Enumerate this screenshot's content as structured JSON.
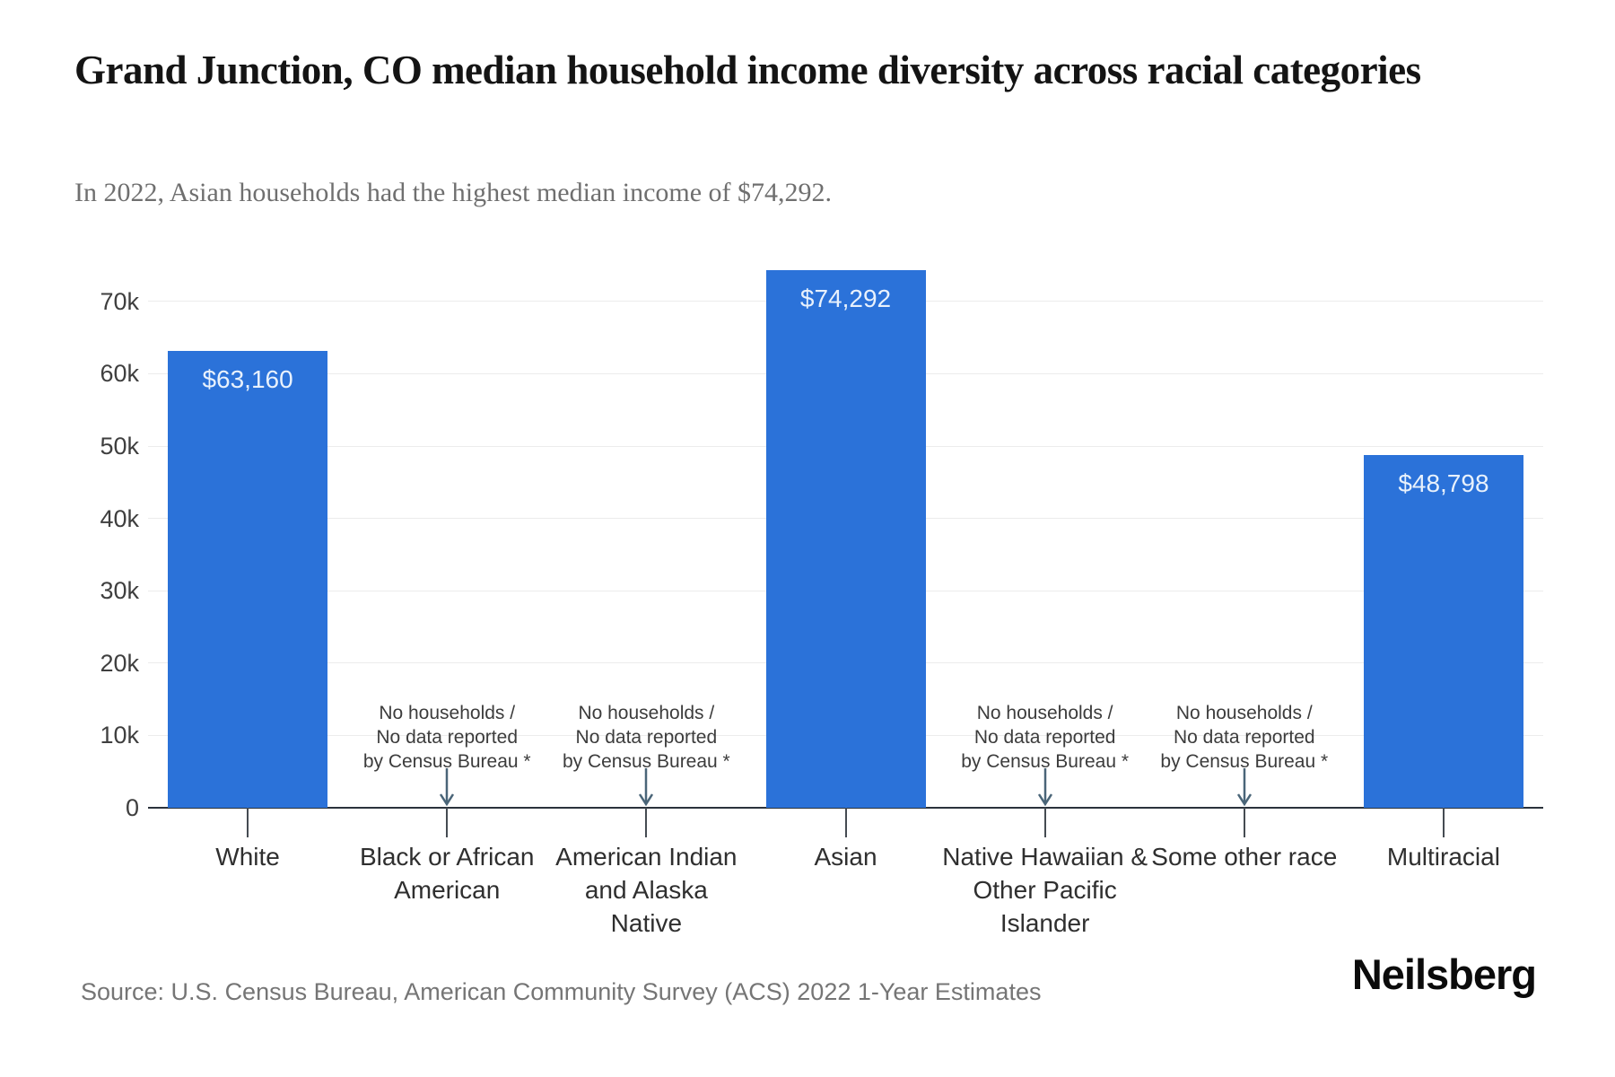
{
  "header": {
    "title": "Grand Junction, CO median household income diversity across racial categories",
    "subtitle": "In 2022, Asian households had the highest median income of $74,292."
  },
  "footer": {
    "source": "Source: U.S. Census Bureau, American Community Survey (ACS) 2022 1-Year Estimates",
    "brand": "Neilsberg"
  },
  "chart_data": {
    "type": "bar",
    "title": "Grand Junction, CO median household income diversity across racial categories",
    "subtitle": "In 2022, Asian households had the highest median income of $74,292.",
    "categories": [
      "White",
      "Black or African American",
      "American Indian and Alaska Native",
      "Asian",
      "Native Hawaiian & Other Pacific Islander",
      "Some other race",
      "Multiracial"
    ],
    "categories_lines": [
      [
        "White"
      ],
      [
        "Black or African",
        "American"
      ],
      [
        "American Indian",
        "and Alaska",
        "Native"
      ],
      [
        "Asian"
      ],
      [
        "Native Hawaiian &",
        "Other Pacific",
        "Islander"
      ],
      [
        "Some other race"
      ],
      [
        "Multiracial"
      ]
    ],
    "values": [
      63160,
      null,
      null,
      74292,
      null,
      null,
      48798
    ],
    "value_labels": [
      "$63,160",
      null,
      null,
      "$74,292",
      null,
      null,
      "$48,798"
    ],
    "no_data_annotation": [
      "No households /",
      "No data reported",
      "by Census Bureau *"
    ],
    "yticks": [
      0,
      10000,
      20000,
      30000,
      40000,
      50000,
      60000,
      70000
    ],
    "ytick_labels": [
      "0",
      "10k",
      "20k",
      "30k",
      "40k",
      "50k",
      "60k",
      "70k"
    ],
    "ylim": [
      0,
      77500
    ],
    "xlabel": "",
    "ylabel": "",
    "grid": true,
    "legend": "none",
    "bar_color": "#2B72D9",
    "value_label_color": "#E8F1FC",
    "annotation_arrow_color": "#4A6578",
    "source": "Source: U.S. Census Bureau, American Community Survey (ACS) 2022 1-Year Estimates",
    "brand": "Neilsberg"
  }
}
